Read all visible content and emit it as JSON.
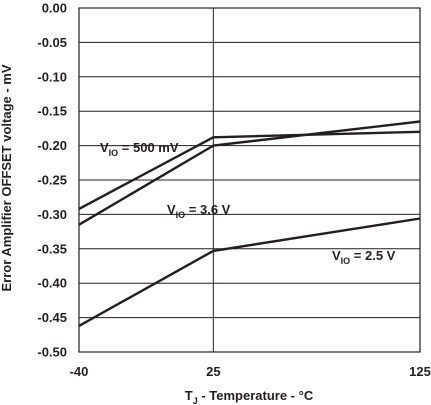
{
  "chart_data": {
    "type": "line",
    "title": "",
    "xlabel": {
      "main": "T",
      "sub": "J",
      "rest": " - Temperature - °C"
    },
    "ylabel": "Error Amplifier OFFSET voltage - mV",
    "x_ticks": [
      "-40",
      "25",
      "125"
    ],
    "x_values": [
      -40,
      25,
      125
    ],
    "xlim": [
      -40,
      125
    ],
    "y_ticks": [
      "0.00",
      "-0.05",
      "-0.10",
      "-0.15",
      "-0.20",
      "-0.25",
      "-0.30",
      "-0.35",
      "-0.40",
      "-0.45",
      "-0.50"
    ],
    "ylim": [
      -0.5,
      0
    ],
    "grid": true,
    "series": [
      {
        "name": "V_IO = 500 mV",
        "label": {
          "main": "V",
          "sub": "IO",
          "rest": " = 500 mV"
        },
        "x": [
          -40,
          25,
          125
        ],
        "y": [
          -0.292,
          -0.188,
          -0.18
        ]
      },
      {
        "name": "V_IO = 3.6 V",
        "label": {
          "main": "V",
          "sub": "IO",
          "rest": " = 3.6 V"
        },
        "x": [
          -40,
          25,
          125
        ],
        "y": [
          -0.315,
          -0.2,
          -0.165
        ]
      },
      {
        "name": "V_IO = 2.5 V",
        "label": {
          "main": "V",
          "sub": "IO",
          "rest": " = 2.5 V"
        },
        "x": [
          -40,
          25,
          125
        ],
        "y": [
          -0.462,
          -0.353,
          -0.306
        ]
      }
    ]
  }
}
